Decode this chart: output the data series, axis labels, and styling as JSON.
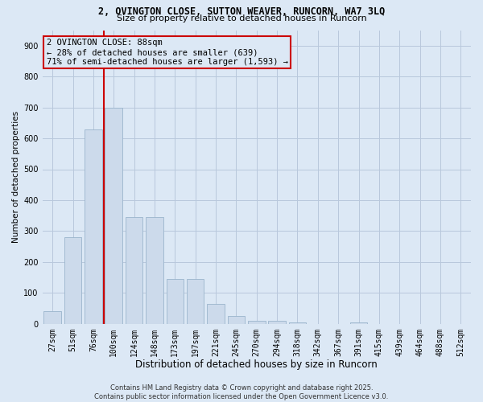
{
  "title1": "2, OVINGTON CLOSE, SUTTON WEAVER, RUNCORN, WA7 3LQ",
  "title2": "Size of property relative to detached houses in Runcorn",
  "xlabel": "Distribution of detached houses by size in Runcorn",
  "ylabel": "Number of detached properties",
  "categories": [
    "27sqm",
    "51sqm",
    "76sqm",
    "100sqm",
    "124sqm",
    "148sqm",
    "173sqm",
    "197sqm",
    "221sqm",
    "245sqm",
    "270sqm",
    "294sqm",
    "318sqm",
    "342sqm",
    "367sqm",
    "391sqm",
    "415sqm",
    "439sqm",
    "464sqm",
    "488sqm",
    "512sqm"
  ],
  "values": [
    40,
    280,
    630,
    700,
    345,
    345,
    145,
    145,
    65,
    25,
    10,
    10,
    5,
    0,
    0,
    5,
    0,
    0,
    0,
    0,
    0
  ],
  "bar_color": "#ccdaeb",
  "bar_edge_color": "#9ab4cc",
  "grid_color": "#b8c8dc",
  "bg_color": "#dce8f5",
  "vline_color": "#cc0000",
  "vline_x_index": 2.5,
  "annotation_text": "2 OVINGTON CLOSE: 88sqm\n← 28% of detached houses are smaller (639)\n71% of semi-detached houses are larger (1,593) →",
  "annotation_box_color": "#cc0000",
  "footer": "Contains HM Land Registry data © Crown copyright and database right 2025.\nContains public sector information licensed under the Open Government Licence v3.0.",
  "ylim": [
    0,
    950
  ],
  "yticks": [
    0,
    100,
    200,
    300,
    400,
    500,
    600,
    700,
    800,
    900
  ],
  "title1_fontsize": 8.5,
  "title2_fontsize": 8.0,
  "xlabel_fontsize": 8.5,
  "ylabel_fontsize": 7.5,
  "tick_fontsize": 7.0,
  "footer_fontsize": 6.0,
  "annot_fontsize": 7.5
}
